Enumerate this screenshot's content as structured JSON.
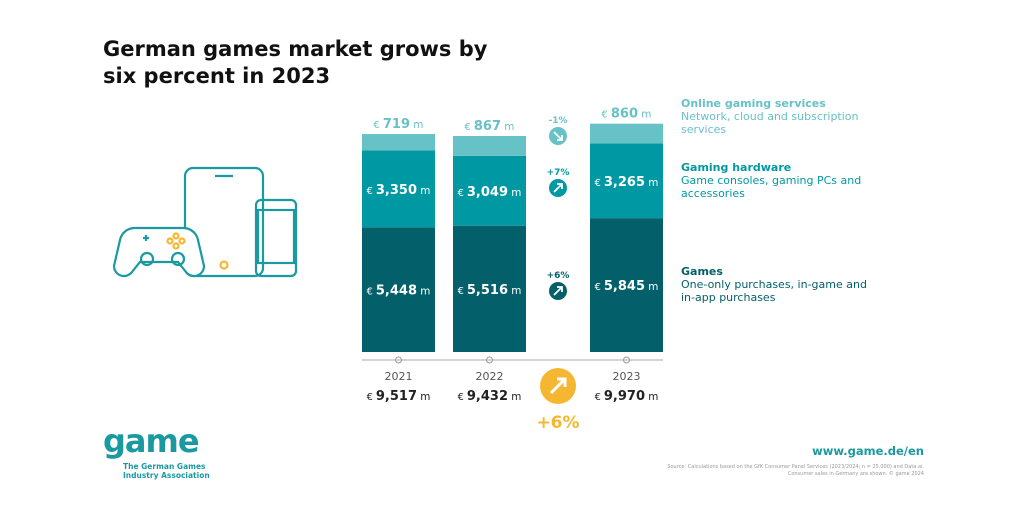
{
  "title": "German games market grows by six percent in 2023",
  "chart_data": {
    "type": "bar",
    "stacked": true,
    "unit": "€ m",
    "categories": [
      "2021",
      "2022",
      "2023"
    ],
    "series": [
      {
        "name": "Games",
        "description": "One-only purchases, in-game and in-app purchases",
        "values": [
          5448,
          5516,
          5845
        ],
        "color": "#03606b",
        "labels": [
          "5,448",
          "5,516",
          "5,845"
        ],
        "change": "+6%"
      },
      {
        "name": "Gaming hardware",
        "description": "Game consoles, gaming PCs and accessories",
        "values": [
          3350,
          3049,
          3265
        ],
        "color": "#0099a3",
        "labels": [
          "3,350",
          "3,049",
          "3,265"
        ],
        "change": "+7%"
      },
      {
        "name": "Online gaming services",
        "description": "Network, cloud and subscription services",
        "values": [
          719,
          867,
          860
        ],
        "color": "#66c2c6",
        "labels": [
          "719",
          "867",
          "860"
        ],
        "change": "-1%"
      }
    ],
    "totals": [
      "9,517",
      "9,432",
      "9,970"
    ],
    "total_change": "+6%",
    "currency": "€",
    "suffix": "m"
  },
  "footer": {
    "url": "www.game.de/en",
    "source": "Source: Calculations based on the GfK Consumer Panel Services (2023/2024; n = 25,000) and Data.ai.",
    "note": "Consumer sales in Germany are shown. © game 2024"
  },
  "logo": {
    "name": "game",
    "subtitle": "The German Games Industry Association"
  }
}
